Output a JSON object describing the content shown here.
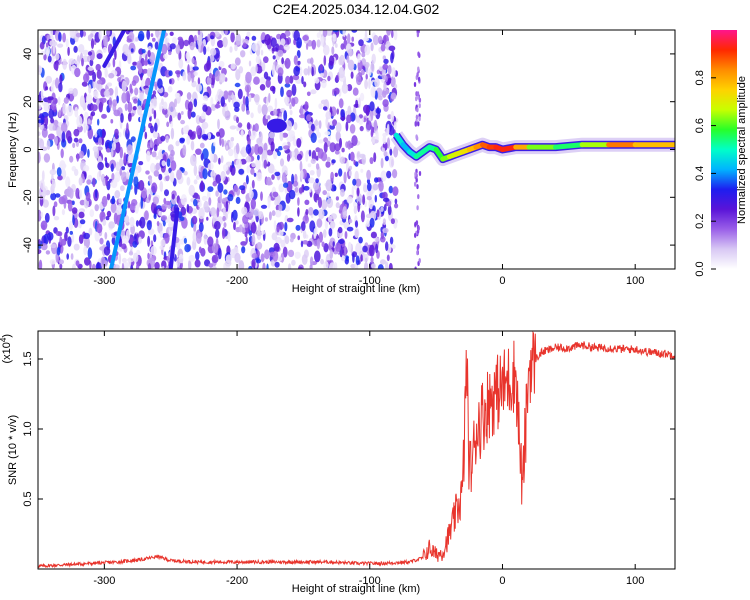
{
  "title": "C2E4.2025.034.12.04.G02",
  "chart_data": [
    {
      "type": "heatmap",
      "xlabel": "Height of straight line (km)",
      "ylabel": "Frequency (Hz)",
      "xlim": [
        -350,
        130
      ],
      "ylim": [
        -50,
        50
      ],
      "xticks": [
        -300,
        -200,
        -100,
        0,
        100
      ],
      "yticks": [
        -40,
        -20,
        0,
        20,
        40
      ],
      "colorbar": {
        "label": "Normalized spectral amplitude",
        "range": [
          0,
          1
        ],
        "ticks": [
          "0.0",
          "0.2",
          "0.4",
          "0.6",
          "0.8"
        ],
        "colors": [
          "#ffffff",
          "#d8c8f4",
          "#9a5fe8",
          "#5a14d8",
          "#1e1ef0",
          "#00b4ff",
          "#00ffc8",
          "#28ff28",
          "#c8ff00",
          "#ffd200",
          "#ff8c00",
          "#ff2800",
          "#ff148c"
        ]
      },
      "noise_region_x": [
        -350,
        -80
      ],
      "signal_ridge": {
        "x": [
          -80,
          -75,
          -70,
          -65,
          -60,
          -55,
          -50,
          -45,
          -40,
          -35,
          -30,
          -25,
          -20,
          -15,
          -10,
          -5,
          0,
          10,
          20,
          40,
          60,
          80,
          100,
          130
        ],
        "frequency": [
          6,
          2,
          -1,
          -3,
          -1,
          1,
          0,
          -4,
          -3,
          -2,
          -1,
          0,
          1,
          2,
          1,
          1,
          0,
          1,
          1,
          1,
          2,
          2,
          2,
          2
        ],
        "amplitude": [
          0.55,
          0.4,
          0.45,
          0.5,
          0.55,
          0.5,
          0.55,
          0.6,
          0.65,
          0.7,
          0.7,
          0.75,
          0.8,
          0.85,
          0.9,
          0.9,
          0.95,
          0.9,
          0.7,
          0.55,
          0.55,
          0.75,
          0.95,
          0.6
        ]
      },
      "diagonal_streaks": [
        {
          "x": [
            -295,
            -255
          ],
          "frequency": [
            -50,
            50
          ],
          "amplitude": 0.4
        },
        {
          "x": [
            -250,
            -245
          ],
          "frequency": [
            -50,
            -25
          ],
          "amplitude": 0.3
        },
        {
          "x": [
            -300,
            -285
          ],
          "frequency": [
            35,
            50
          ],
          "amplitude": 0.3
        }
      ],
      "blob": {
        "x": -170,
        "frequency": 10,
        "amplitude": 0.3
      }
    },
    {
      "type": "line",
      "xlabel": "Height of straight line (km)",
      "ylabel": "SNR (10 * v/v)",
      "scale_label_prefix": "(x10",
      "scale_label_exponent": "4",
      "scale_label_suffix": ")",
      "xlim": [
        -350,
        130
      ],
      "ylim": [
        0,
        1.7
      ],
      "xticks": [
        -300,
        -200,
        -100,
        0,
        100
      ],
      "yticks": [
        "0.5",
        "1.0",
        "1.5"
      ],
      "color": "#e8342c",
      "series": [
        {
          "x": [
            -350,
            -330,
            -310,
            -290,
            -270,
            -260,
            -250,
            -230,
            -210,
            -190,
            -170,
            -150,
            -130,
            -110,
            -90,
            -70,
            -60,
            -55,
            -50,
            -45,
            -40,
            -35,
            -30,
            -27,
            -25,
            -22,
            -20,
            -15,
            -10,
            -5,
            0,
            5,
            10,
            15,
            20,
            25,
            30,
            40,
            50,
            60,
            70,
            80,
            90,
            100,
            110,
            120,
            130
          ],
          "y": [
            0.02,
            0.03,
            0.04,
            0.05,
            0.07,
            0.09,
            0.06,
            0.05,
            0.05,
            0.05,
            0.05,
            0.05,
            0.05,
            0.04,
            0.04,
            0.05,
            0.08,
            0.15,
            0.1,
            0.12,
            0.25,
            0.4,
            0.55,
            1.5,
            0.7,
            0.8,
            1.0,
            1.1,
            1.2,
            1.25,
            1.3,
            1.35,
            1.4,
            0.55,
            1.45,
            1.5,
            1.55,
            1.58,
            1.58,
            1.6,
            1.58,
            1.58,
            1.57,
            1.57,
            1.55,
            1.54,
            1.53
          ]
        }
      ]
    }
  ]
}
